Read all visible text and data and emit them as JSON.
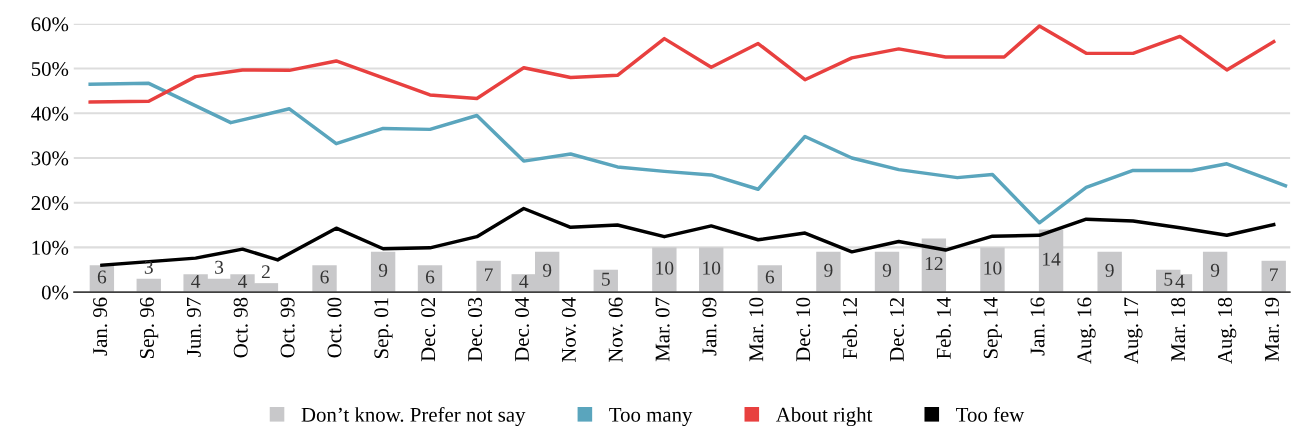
{
  "chart_data": {
    "type": "line",
    "categories": [
      null,
      "Jan. 96",
      null,
      null,
      null,
      "Sep. 96",
      null,
      null,
      null,
      "Jun. 97",
      null,
      null,
      null,
      "Oct. 98",
      null,
      null,
      null,
      "Oct. 99",
      null,
      null,
      null,
      "Oct. 00",
      null,
      null,
      null,
      "Sep. 01",
      null,
      null,
      null,
      "Dec. 02",
      null,
      null,
      null,
      "Dec. 03",
      null,
      null,
      null,
      "Dec. 04",
      null,
      null,
      null,
      "Nov. 04",
      null,
      null,
      null,
      "Nov. 06",
      null,
      null,
      null,
      "Mar. 07",
      null,
      null,
      null,
      "Jan. 09",
      null,
      null,
      null,
      "Mar. 10",
      null,
      null,
      null,
      "Dec. 10",
      null,
      null,
      null,
      "Feb. 12",
      null,
      null,
      null,
      "Dec. 12",
      null,
      null,
      null,
      "Feb. 14",
      null,
      null,
      null,
      "Sep. 14",
      null,
      null,
      null,
      "Jan. 16",
      null,
      null,
      null,
      "Aug. 16",
      null,
      null,
      null,
      "Aug. 17",
      null,
      null,
      null,
      "Mar. 18",
      null,
      null,
      null,
      "Aug. 18",
      null,
      null,
      null,
      "Mar. 19",
      null
    ],
    "ylim": [
      0,
      60
    ],
    "yticks": [
      {
        "value": 0,
        "label": "0%"
      },
      {
        "value": 10,
        "label": "10%"
      },
      {
        "value": 20,
        "label": "20%"
      },
      {
        "value": 30,
        "label": "30%"
      },
      {
        "value": 40,
        "label": "40%"
      },
      {
        "value": 50,
        "label": "50%"
      },
      {
        "value": 60,
        "label": "60%"
      }
    ],
    "grid": "y",
    "legend": "bottom",
    "marker": "none",
    "line_style": "solid",
    "series": [
      {
        "name": "Don’t know. Prefer not say",
        "type": "bar",
        "color": "#c8c8ca",
        "data_labels": true,
        "values": [
          null,
          6,
          null,
          null,
          null,
          3,
          null,
          null,
          null,
          4,
          null,
          3,
          null,
          4,
          null,
          2,
          null,
          null,
          null,
          null,
          6,
          null,
          null,
          null,
          null,
          9,
          null,
          null,
          null,
          6,
          null,
          null,
          null,
          null,
          7,
          null,
          null,
          4,
          null,
          9,
          null,
          null,
          null,
          null,
          5,
          null,
          null,
          null,
          null,
          10,
          null,
          null,
          null,
          10,
          null,
          null,
          null,
          null,
          6,
          null,
          null,
          null,
          null,
          9,
          null,
          null,
          null,
          null,
          9,
          null,
          null,
          null,
          12,
          null,
          null,
          null,
          null,
          10,
          null,
          null,
          null,
          null,
          14,
          null,
          null,
          null,
          null,
          9,
          null,
          null,
          null,
          null,
          5,
          4,
          null,
          null,
          9,
          null,
          null,
          null,
          null,
          7,
          null
        ]
      },
      {
        "name": "Too many",
        "color": "#5aa5bd",
        "values": [
          46.5,
          null,
          null,
          null,
          null,
          46.7,
          null,
          null,
          null,
          null,
          null,
          null,
          37.9,
          null,
          null,
          null,
          null,
          41.0,
          null,
          null,
          null,
          33.2,
          null,
          null,
          null,
          36.6,
          null,
          null,
          null,
          36.4,
          null,
          null,
          null,
          39.5,
          null,
          null,
          null,
          29.3,
          null,
          null,
          null,
          30.9,
          null,
          null,
          null,
          28.0,
          null,
          null,
          null,
          27.0,
          null,
          null,
          null,
          26.2,
          null,
          null,
          null,
          23.0,
          null,
          null,
          null,
          34.8,
          null,
          null,
          null,
          30.0,
          null,
          null,
          null,
          27.4,
          null,
          null,
          null,
          null,
          25.6,
          null,
          null,
          26.3,
          null,
          null,
          null,
          15.5,
          null,
          null,
          null,
          23.4,
          null,
          null,
          null,
          27.2,
          null,
          null,
          null,
          null,
          27.2,
          null,
          null,
          28.7,
          null,
          null,
          null,
          null,
          23.8
        ]
      },
      {
        "name": "About right",
        "color": "#e8403f",
        "values": [
          42.5,
          null,
          null,
          null,
          null,
          42.7,
          null,
          null,
          null,
          48.2,
          null,
          null,
          null,
          49.7,
          null,
          null,
          null,
          49.6,
          null,
          null,
          null,
          51.7,
          null,
          null,
          null,
          null,
          null,
          null,
          null,
          44.1,
          null,
          null,
          null,
          43.3,
          null,
          null,
          null,
          50.2,
          null,
          null,
          null,
          48.0,
          null,
          null,
          null,
          48.5,
          null,
          null,
          null,
          56.7,
          null,
          null,
          null,
          50.3,
          null,
          null,
          null,
          55.6,
          null,
          null,
          null,
          47.5,
          null,
          null,
          null,
          52.4,
          null,
          null,
          null,
          54.4,
          null,
          null,
          null,
          52.6,
          null,
          null,
          null,
          null,
          52.6,
          null,
          null,
          59.5,
          null,
          null,
          null,
          53.4,
          null,
          null,
          null,
          53.4,
          null,
          null,
          null,
          57.2,
          null,
          null,
          null,
          49.7,
          null,
          null,
          null,
          56.0,
          null
        ]
      },
      {
        "name": "Too few",
        "color": "#000000",
        "values": [
          null,
          6.0,
          null,
          null,
          null,
          null,
          null,
          null,
          null,
          7.6,
          null,
          null,
          null,
          9.6,
          null,
          null,
          7.2,
          null,
          null,
          null,
          null,
          14.3,
          null,
          null,
          null,
          9.7,
          null,
          null,
          null,
          9.9,
          null,
          null,
          null,
          12.4,
          null,
          null,
          null,
          18.7,
          null,
          null,
          null,
          14.5,
          null,
          null,
          null,
          15.0,
          null,
          null,
          null,
          12.4,
          null,
          null,
          null,
          14.8,
          null,
          null,
          null,
          11.7,
          null,
          null,
          null,
          13.2,
          null,
          null,
          null,
          9.0,
          null,
          null,
          null,
          11.3,
          null,
          null,
          null,
          9.4,
          null,
          null,
          null,
          12.5,
          null,
          null,
          null,
          12.7,
          null,
          null,
          null,
          16.3,
          null,
          null,
          null,
          15.9,
          null,
          null,
          null,
          14.4,
          null,
          null,
          null,
          12.7,
          null,
          null,
          null,
          15.1,
          null
        ]
      }
    ]
  }
}
